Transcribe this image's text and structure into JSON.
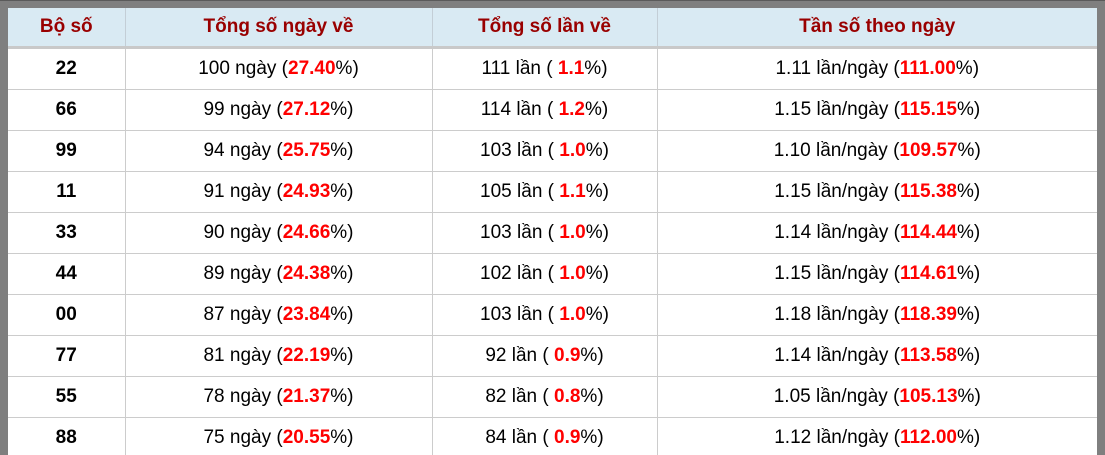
{
  "colors": {
    "frame_bg": "#7f7f7f",
    "header_bg": "#d9eaf3",
    "header_text": "#990000",
    "body_text": "#000000",
    "highlight_red": "#ff0000",
    "grid_line": "#cccccc"
  },
  "table": {
    "headers": [
      "Bộ số",
      "Tổng số ngày về",
      "Tổng số lần về",
      "Tần số theo ngày"
    ],
    "rows": [
      {
        "set": "22",
        "days": {
          "pre": "100 ngày (",
          "red": "27.40",
          "post": "%)"
        },
        "times": {
          "pre": "111 lần ( ",
          "red": "1.1",
          "post": "%)"
        },
        "freq": {
          "pre": "1.11 lần/ngày (",
          "red": "111.00",
          "post": "%)"
        }
      },
      {
        "set": "66",
        "days": {
          "pre": "99 ngày (",
          "red": "27.12",
          "post": "%)"
        },
        "times": {
          "pre": "114 lần ( ",
          "red": "1.2",
          "post": "%)"
        },
        "freq": {
          "pre": "1.15 lần/ngày (",
          "red": "115.15",
          "post": "%)"
        }
      },
      {
        "set": "99",
        "days": {
          "pre": "94 ngày (",
          "red": "25.75",
          "post": "%)"
        },
        "times": {
          "pre": "103 lần ( ",
          "red": "1.0",
          "post": "%)"
        },
        "freq": {
          "pre": "1.10 lần/ngày (",
          "red": "109.57",
          "post": "%)"
        }
      },
      {
        "set": "11",
        "days": {
          "pre": "91 ngày (",
          "red": "24.93",
          "post": "%)"
        },
        "times": {
          "pre": "105 lần ( ",
          "red": "1.1",
          "post": "%)"
        },
        "freq": {
          "pre": "1.15 lần/ngày (",
          "red": "115.38",
          "post": "%)"
        }
      },
      {
        "set": "33",
        "days": {
          "pre": "90 ngày (",
          "red": "24.66",
          "post": "%)"
        },
        "times": {
          "pre": "103 lần ( ",
          "red": "1.0",
          "post": "%)"
        },
        "freq": {
          "pre": "1.14 lần/ngày (",
          "red": "114.44",
          "post": "%)"
        }
      },
      {
        "set": "44",
        "days": {
          "pre": "89 ngày (",
          "red": "24.38",
          "post": "%)"
        },
        "times": {
          "pre": "102 lần ( ",
          "red": "1.0",
          "post": "%)"
        },
        "freq": {
          "pre": "1.15 lần/ngày (",
          "red": "114.61",
          "post": "%)"
        }
      },
      {
        "set": "00",
        "days": {
          "pre": "87 ngày (",
          "red": "23.84",
          "post": "%)"
        },
        "times": {
          "pre": "103 lần ( ",
          "red": "1.0",
          "post": "%)"
        },
        "freq": {
          "pre": "1.18 lần/ngày (",
          "red": "118.39",
          "post": "%)"
        }
      },
      {
        "set": "77",
        "days": {
          "pre": "81 ngày (",
          "red": "22.19",
          "post": "%)"
        },
        "times": {
          "pre": "92 lần ( ",
          "red": "0.9",
          "post": "%)"
        },
        "freq": {
          "pre": "1.14 lần/ngày (",
          "red": "113.58",
          "post": "%)"
        }
      },
      {
        "set": "55",
        "days": {
          "pre": "78 ngày (",
          "red": "21.37",
          "post": "%)"
        },
        "times": {
          "pre": "82 lần ( ",
          "red": "0.8",
          "post": "%)"
        },
        "freq": {
          "pre": "1.05 lần/ngày (",
          "red": "105.13",
          "post": "%)"
        }
      },
      {
        "set": "88",
        "days": {
          "pre": "75 ngày (",
          "red": "20.55",
          "post": "%)"
        },
        "times": {
          "pre": "84 lần ( ",
          "red": "0.9",
          "post": "%)"
        },
        "freq": {
          "pre": "1.12 lần/ngày (",
          "red": "112.00",
          "post": "%)"
        }
      }
    ]
  },
  "chart_data": {
    "type": "table",
    "title": "",
    "columns": [
      "Bộ số",
      "Tổng số ngày về",
      "Tổng số lần về",
      "Tần số theo ngày"
    ],
    "rows": [
      {
        "bo_so": "22",
        "ngay": 100,
        "ngay_pct": 27.4,
        "lan": 111,
        "lan_pct": 1.1,
        "tan_so": 1.11,
        "tan_so_pct": 111.0
      },
      {
        "bo_so": "66",
        "ngay": 99,
        "ngay_pct": 27.12,
        "lan": 114,
        "lan_pct": 1.2,
        "tan_so": 1.15,
        "tan_so_pct": 115.15
      },
      {
        "bo_so": "99",
        "ngay": 94,
        "ngay_pct": 25.75,
        "lan": 103,
        "lan_pct": 1.0,
        "tan_so": 1.1,
        "tan_so_pct": 109.57
      },
      {
        "bo_so": "11",
        "ngay": 91,
        "ngay_pct": 24.93,
        "lan": 105,
        "lan_pct": 1.1,
        "tan_so": 1.15,
        "tan_so_pct": 115.38
      },
      {
        "bo_so": "33",
        "ngay": 90,
        "ngay_pct": 24.66,
        "lan": 103,
        "lan_pct": 1.0,
        "tan_so": 1.14,
        "tan_so_pct": 114.44
      },
      {
        "bo_so": "44",
        "ngay": 89,
        "ngay_pct": 24.38,
        "lan": 102,
        "lan_pct": 1.0,
        "tan_so": 1.15,
        "tan_so_pct": 114.61
      },
      {
        "bo_so": "00",
        "ngay": 87,
        "ngay_pct": 23.84,
        "lan": 103,
        "lan_pct": 1.0,
        "tan_so": 1.18,
        "tan_so_pct": 118.39
      },
      {
        "bo_so": "77",
        "ngay": 81,
        "ngay_pct": 22.19,
        "lan": 92,
        "lan_pct": 0.9,
        "tan_so": 1.14,
        "tan_so_pct": 113.58
      },
      {
        "bo_so": "55",
        "ngay": 78,
        "ngay_pct": 21.37,
        "lan": 82,
        "lan_pct": 0.8,
        "tan_so": 1.05,
        "tan_so_pct": 105.13
      },
      {
        "bo_so": "88",
        "ngay": 75,
        "ngay_pct": 20.55,
        "lan": 84,
        "lan_pct": 0.9,
        "tan_so": 1.12,
        "tan_so_pct": 112.0
      }
    ]
  }
}
